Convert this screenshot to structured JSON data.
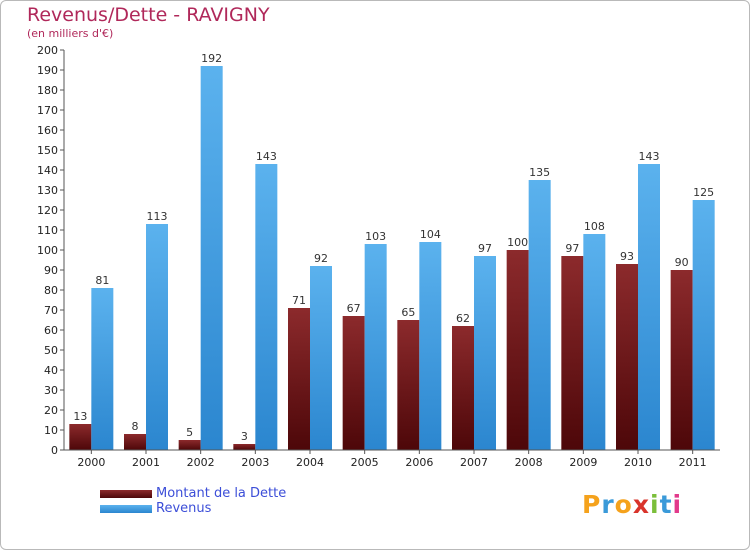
{
  "chart_data": {
    "type": "bar",
    "title": "Revenus/Dette - RAVIGNY",
    "subtitle": "(en milliers d'€)",
    "categories": [
      "2000",
      "2001",
      "2002",
      "2003",
      "2004",
      "2005",
      "2006",
      "2007",
      "2008",
      "2009",
      "2010",
      "2011"
    ],
    "series": [
      {
        "name": "Montant de la Dette",
        "color": "#6b1416",
        "values": [
          13,
          8,
          5,
          3,
          71,
          67,
          65,
          62,
          100,
          97,
          93,
          90
        ]
      },
      {
        "name": "Revenus",
        "color": "#3f9de0",
        "values": [
          81,
          113,
          192,
          143,
          92,
          103,
          104,
          97,
          135,
          108,
          143,
          125
        ]
      }
    ],
    "ylim": [
      0,
      200
    ],
    "ytick_step": 10,
    "grid": false,
    "legend_position": "bottom-left"
  },
  "branding": {
    "logo_letters": [
      "P",
      "r",
      "o",
      "x",
      "i",
      "t",
      "i"
    ],
    "logo_colors": [
      "#f5a21c",
      "#3a9ad9",
      "#f5a21c",
      "#d9342b",
      "#7bbf3a",
      "#3a9ad9",
      "#e23a8b"
    ]
  }
}
